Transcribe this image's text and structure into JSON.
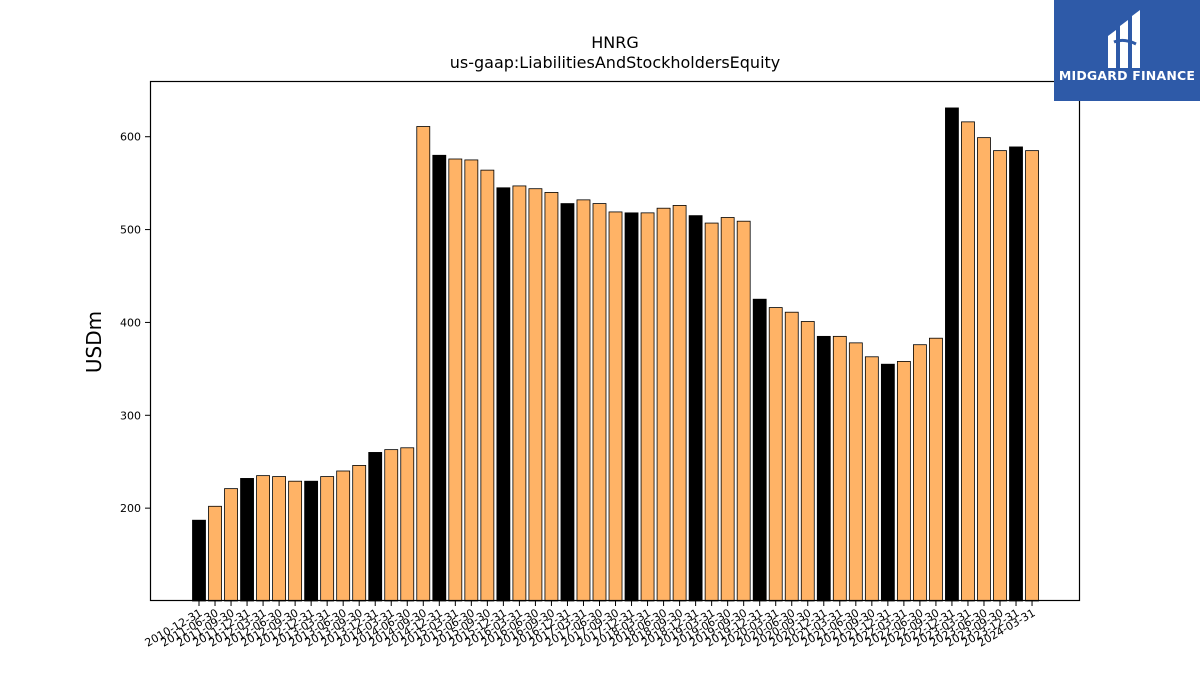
{
  "brand": {
    "name": "MIDGARD FINANCE",
    "bg_color": "#2e5aa8",
    "icon": "midgard-logo-icon"
  },
  "chart_data": {
    "type": "bar",
    "title": "HNRG",
    "subtitle": "us-gaap:LiabilitiesAndStockholdersEquity",
    "xlabel": "",
    "ylabel": "USDm",
    "ylim": [
      100,
      660
    ],
    "yticks": [
      200,
      300,
      400,
      500,
      600
    ],
    "grid": false,
    "colors": {
      "annual": "#000000",
      "quarterly": "#ffb366",
      "edge": "#000000"
    },
    "categories": [
      "2010-12-31",
      "2011-06-30",
      "2011-09-30",
      "2011-12-31",
      "2012-03-31",
      "2012-06-30",
      "2012-09-30",
      "2012-12-31",
      "2013-03-31",
      "2013-06-30",
      "2013-09-30",
      "2013-12-31",
      "2014-03-31",
      "2014-06-30",
      "2014-09-30",
      "2014-12-31",
      "2015-03-31",
      "2015-06-30",
      "2015-09-30",
      "2015-12-31",
      "2016-03-31",
      "2016-06-30",
      "2016-09-30",
      "2016-12-31",
      "2017-03-31",
      "2017-06-30",
      "2017-09-30",
      "2017-12-31",
      "2018-03-31",
      "2018-06-30",
      "2018-09-30",
      "2018-12-31",
      "2019-03-31",
      "2019-06-30",
      "2019-09-30",
      "2019-12-31",
      "2020-03-31",
      "2020-06-30",
      "2020-09-30",
      "2020-12-31",
      "2021-03-31",
      "2021-06-30",
      "2021-09-30",
      "2021-12-31",
      "2022-03-31",
      "2022-06-30",
      "2022-09-30",
      "2022-12-31",
      "2023-03-31",
      "2023-06-30",
      "2023-09-30",
      "2023-12-31",
      "2024-03-31"
    ],
    "values": [
      187,
      202,
      221,
      232,
      235,
      234,
      229,
      229,
      234,
      240,
      246,
      260,
      263,
      265,
      611,
      580,
      576,
      575,
      564,
      545,
      547,
      544,
      540,
      528,
      532,
      528,
      519,
      518,
      518,
      523,
      526,
      515,
      507,
      513,
      509,
      425,
      416,
      411,
      401,
      385,
      385,
      378,
      363,
      355,
      358,
      376,
      383,
      631,
      616,
      599,
      585,
      589,
      585
    ],
    "annual_flags": [
      1,
      0,
      0,
      1,
      0,
      0,
      0,
      1,
      0,
      0,
      0,
      1,
      0,
      0,
      0,
      1,
      0,
      0,
      0,
      1,
      0,
      0,
      0,
      1,
      0,
      0,
      0,
      1,
      0,
      0,
      0,
      1,
      0,
      0,
      0,
      1,
      0,
      0,
      0,
      1,
      0,
      0,
      0,
      1,
      0,
      0,
      0,
      1,
      0,
      0,
      0,
      1,
      0
    ]
  }
}
